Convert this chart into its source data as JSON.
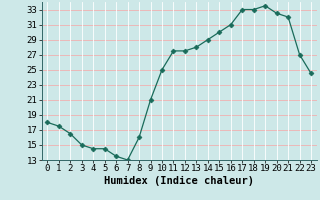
{
  "x": [
    0,
    1,
    2,
    3,
    4,
    5,
    6,
    7,
    8,
    9,
    10,
    11,
    12,
    13,
    14,
    15,
    16,
    17,
    18,
    19,
    20,
    21,
    22,
    23
  ],
  "y": [
    18,
    17.5,
    16.5,
    15,
    14.5,
    14.5,
    13.5,
    13,
    16,
    21,
    25,
    27.5,
    27.5,
    28,
    29,
    30,
    31,
    33,
    33,
    33.5,
    32.5,
    32,
    27,
    24.5
  ],
  "line_color": "#1a6b5a",
  "marker": "D",
  "marker_size": 2.5,
  "bg_color": "#cde8e8",
  "grid_color_h": "#f0b0b0",
  "grid_color_v": "#ffffff",
  "xlabel": "Humidex (Indice chaleur)",
  "ylabel": "",
  "xlim": [
    -0.5,
    23.5
  ],
  "ylim": [
    13,
    34
  ],
  "yticks": [
    13,
    15,
    17,
    19,
    21,
    23,
    25,
    27,
    29,
    31,
    33
  ],
  "xticks": [
    0,
    1,
    2,
    3,
    4,
    5,
    6,
    7,
    8,
    9,
    10,
    11,
    12,
    13,
    14,
    15,
    16,
    17,
    18,
    19,
    20,
    21,
    22,
    23
  ],
  "xlabel_fontsize": 7.5,
  "tick_fontsize": 6.5
}
